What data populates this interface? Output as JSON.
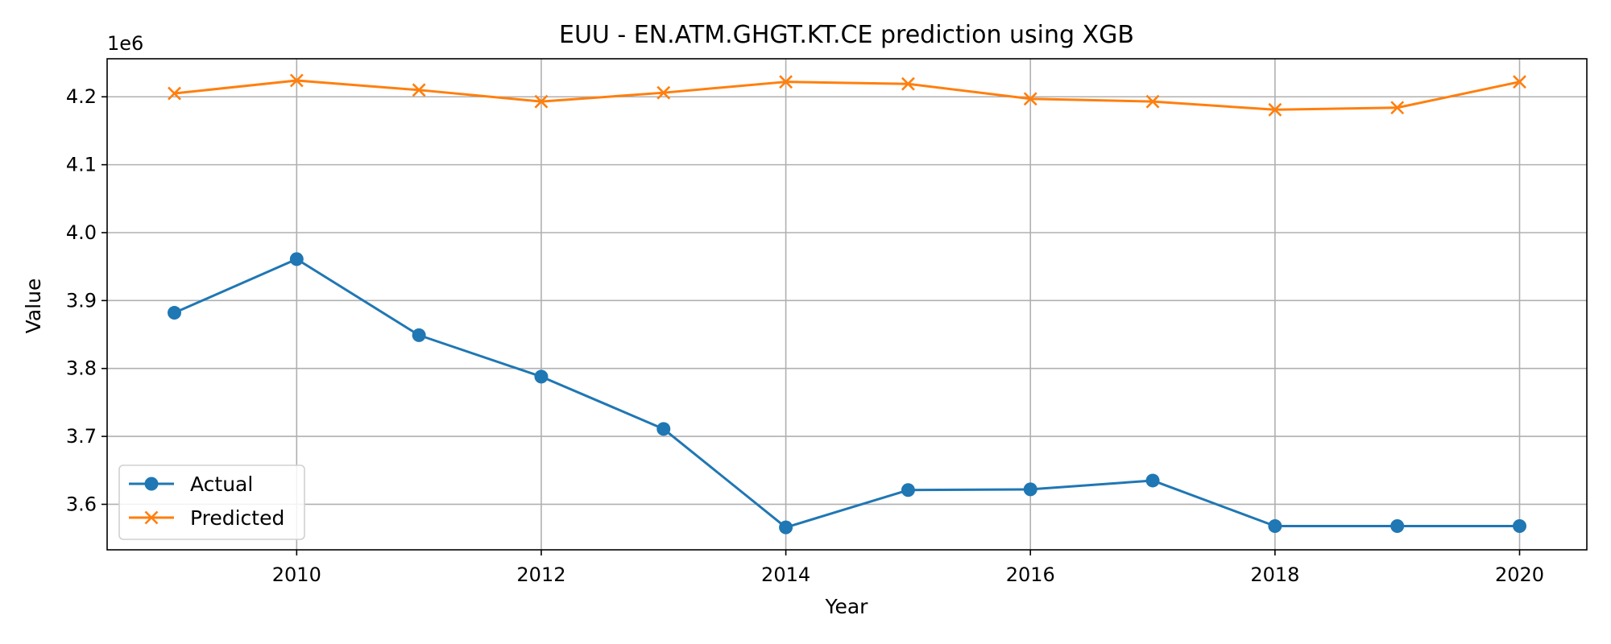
{
  "chart_data": {
    "type": "line",
    "title": "EUU - EN.ATM.GHGT.KT.CE prediction using XGB",
    "xlabel": "Year",
    "ylabel": "Value",
    "y_multiplier_label": "1e6",
    "x": [
      2009,
      2010,
      2011,
      2012,
      2013,
      2014,
      2015,
      2016,
      2017,
      2018,
      2019,
      2020
    ],
    "xlim": [
      2008.45,
      2020.55
    ],
    "ylim": [
      3.533,
      4.256
    ],
    "x_ticks": [
      2010,
      2012,
      2014,
      2016,
      2018,
      2020
    ],
    "x_tick_labels": [
      "2010",
      "2012",
      "2014",
      "2016",
      "2018",
      "2020"
    ],
    "y_ticks": [
      3.6,
      3.7,
      3.8,
      3.9,
      4.0,
      4.1,
      4.2
    ],
    "y_tick_labels": [
      "3.6",
      "3.7",
      "3.8",
      "3.9",
      "4.0",
      "4.1",
      "4.2"
    ],
    "grid": true,
    "legend_position": "lower-left",
    "series": [
      {
        "name": "Actual",
        "color": "#1f77b4",
        "marker": "circle",
        "values": [
          3.882,
          3.961,
          3.849,
          3.788,
          3.711,
          3.566,
          3.621,
          3.622,
          3.635,
          3.568,
          3.568,
          3.568
        ]
      },
      {
        "name": "Predicted",
        "color": "#ff7f0e",
        "marker": "x",
        "values": [
          4.205,
          4.224,
          4.21,
          4.193,
          4.206,
          4.222,
          4.219,
          4.197,
          4.193,
          4.181,
          4.184,
          4.222
        ]
      }
    ]
  }
}
